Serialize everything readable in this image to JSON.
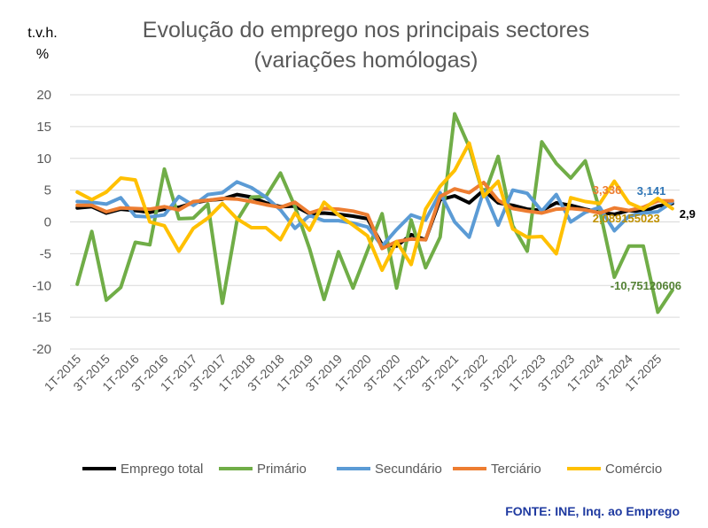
{
  "chart_data": {
    "type": "line",
    "title": "Evolução do emprego nos principais sectores",
    "subtitle": "(variações homólogas)",
    "ylabel_line1": "t.v.h.",
    "ylabel_line2": "%",
    "ylim": [
      -20,
      20
    ],
    "yticks": [
      "20",
      "15",
      "10",
      "5",
      "0",
      "-5",
      "-10",
      "-15",
      "-20"
    ],
    "x_tick_labels": [
      "1T-2015",
      "3T-2015",
      "1T-2016",
      "3T-2016",
      "1T-2017",
      "3T-2017",
      "1T-2018",
      "3T-2018",
      "1T-2019",
      "3T-2019",
      "1T-2020",
      "3T-2020",
      "1T-2021",
      "3T-2021",
      "1T-2022",
      "3T-2022",
      "1T-2023",
      "3T-2023",
      "1T-2024",
      "3T-2024",
      "1T-2025"
    ],
    "n_points": 42,
    "series": [
      {
        "name": "Emprego total",
        "color": "#000000",
        "values": [
          2.2,
          2.4,
          1.4,
          2.0,
          1.8,
          1.5,
          2.0,
          2.3,
          3.0,
          3.4,
          3.6,
          4.3,
          3.9,
          3.0,
          2.4,
          2.5,
          1.3,
          1.4,
          1.2,
          0.9,
          0.5,
          -3.6,
          -3.8,
          -2.0,
          -2.8,
          3.5,
          4.1,
          3.0,
          5.0,
          3.0,
          2.6,
          2.0,
          1.8,
          3.0,
          2.6,
          2.0,
          1.5,
          1.2,
          1.8,
          1.6,
          2.5,
          2.9
        ]
      },
      {
        "name": "Primário",
        "color": "#70ad47",
        "values": [
          -9.8,
          -1.5,
          -12.3,
          -10.3,
          -3.2,
          -3.6,
          8.3,
          0.5,
          0.6,
          2.8,
          -12.8,
          0.2,
          3.9,
          4.0,
          7.7,
          2.4,
          -4.2,
          -12.2,
          -4.7,
          -10.4,
          -4.5,
          1.3,
          -10.4,
          0.3,
          -7.2,
          -2.4,
          17.0,
          11.8,
          4.0,
          10.3,
          -0.6,
          -4.6,
          12.6,
          9.2,
          6.9,
          9.6,
          1.8,
          -8.7,
          -3.8,
          -3.8,
          -14.2,
          -10.75120606
        ]
      },
      {
        "name": "Secundário",
        "color": "#5b9bd5",
        "values": [
          3.2,
          3.1,
          2.8,
          3.8,
          0.9,
          0.8,
          1.1,
          4.0,
          2.6,
          4.3,
          4.6,
          6.3,
          5.4,
          3.9,
          1.9,
          -1.0,
          1.0,
          0.2,
          0.2,
          -0.2,
          -0.8,
          -3.8,
          -1.2,
          1.1,
          0.3,
          4.6,
          0.0,
          -2.4,
          4.9,
          -0.5,
          5.0,
          4.5,
          1.7,
          4.3,
          0.0,
          1.5,
          2.3,
          -1.4,
          0.9,
          1.4,
          1.6,
          3.141
        ]
      },
      {
        "name": "Terciário",
        "color": "#ed7d31",
        "values": [
          2.6,
          2.6,
          1.6,
          2.2,
          2.1,
          2.0,
          2.4,
          1.9,
          3.2,
          3.4,
          3.7,
          3.6,
          3.2,
          2.7,
          2.3,
          3.1,
          1.4,
          2.1,
          2.0,
          1.7,
          1.1,
          -4.2,
          -3.1,
          -2.7,
          -2.8,
          4.0,
          5.2,
          4.6,
          6.2,
          3.4,
          2.1,
          1.7,
          1.4,
          2.0,
          2.1,
          1.9,
          1.4,
          2.2,
          1.8,
          2.3,
          3.3,
          3.336
        ]
      },
      {
        "name": "Comércio",
        "color": "#ffc000",
        "values": [
          4.7,
          3.5,
          4.7,
          6.9,
          6.6,
          0.0,
          -0.6,
          -4.6,
          -1.0,
          0.6,
          2.9,
          0.5,
          -0.9,
          -0.9,
          -2.8,
          1.4,
          -1.3,
          3.1,
          1.1,
          -0.5,
          -2.2,
          -7.6,
          -3.1,
          -6.7,
          2.0,
          5.6,
          8.1,
          12.4,
          4.0,
          6.4,
          -1.1,
          -2.4,
          -2.3,
          -5.0,
          3.8,
          3.2,
          2.9,
          6.4,
          3.0,
          2.0,
          3.7,
          2.089155023
        ]
      }
    ],
    "data_labels": [
      {
        "series": "Emprego total",
        "text": "2,9"
      },
      {
        "series": "Primário",
        "text": "-10,75120606"
      },
      {
        "series": "Secundário",
        "text": "3,141"
      },
      {
        "series": "Terciário",
        "text": "3,336"
      },
      {
        "series": "Comércio",
        "text": "2,089155023"
      }
    ],
    "legend": [
      "Emprego total",
      "Primário",
      "Secundário",
      "Terciário",
      "Comércio"
    ],
    "legend_position": "bottom"
  },
  "source": "FONTE: INE, Inq. ao Emprego"
}
